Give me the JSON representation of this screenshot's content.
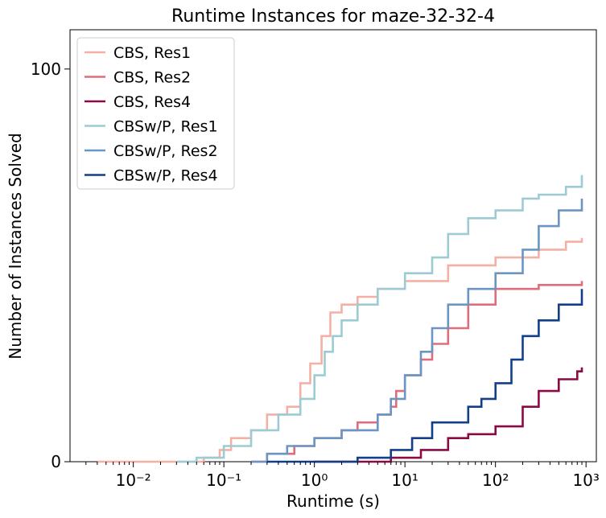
{
  "chart_data": {
    "type": "line",
    "title": "Runtime Instances for maze-32-32-4",
    "xlabel": "Runtime (s)",
    "ylabel": "Number of Instances Solved",
    "xscale": "log",
    "xlim": [
      0.002,
      1300
    ],
    "ylim": [
      0,
      110
    ],
    "xticks": [
      {
        "value": 0.01,
        "label": "10⁻²"
      },
      {
        "value": 0.1,
        "label": "10⁻¹"
      },
      {
        "value": 1,
        "label": "10⁰"
      },
      {
        "value": 10,
        "label": "10¹"
      },
      {
        "value": 100,
        "label": "10²"
      },
      {
        "value": 1000,
        "label": "10³"
      }
    ],
    "yticks": [
      {
        "value": 0,
        "label": "0"
      },
      {
        "value": 100,
        "label": "100"
      }
    ],
    "grid": false,
    "legend_position": "top-left",
    "series": [
      {
        "name": "CBS, Res1",
        "color": "#f4b0a5",
        "points": [
          [
            0.004,
            0
          ],
          [
            0.06,
            1
          ],
          [
            0.09,
            3
          ],
          [
            0.12,
            6
          ],
          [
            0.2,
            8
          ],
          [
            0.3,
            12
          ],
          [
            0.5,
            14
          ],
          [
            0.7,
            20
          ],
          [
            0.9,
            25
          ],
          [
            1.2,
            32
          ],
          [
            1.5,
            38
          ],
          [
            2.0,
            40
          ],
          [
            3.0,
            42
          ],
          [
            5.0,
            44
          ],
          [
            10,
            46
          ],
          [
            30,
            50
          ],
          [
            100,
            52
          ],
          [
            300,
            54
          ],
          [
            600,
            56
          ],
          [
            900,
            57
          ]
        ]
      },
      {
        "name": "CBS, Res2",
        "color": "#e06c7c",
        "points": [
          [
            0.2,
            0
          ],
          [
            0.3,
            2
          ],
          [
            0.6,
            4
          ],
          [
            1.0,
            6
          ],
          [
            2.0,
            8
          ],
          [
            3.0,
            10
          ],
          [
            5.0,
            12
          ],
          [
            7.0,
            14
          ],
          [
            8.0,
            18
          ],
          [
            10,
            22
          ],
          [
            15,
            26
          ],
          [
            20,
            30
          ],
          [
            30,
            34
          ],
          [
            50,
            40
          ],
          [
            100,
            44
          ],
          [
            300,
            45
          ],
          [
            900,
            46
          ]
        ]
      },
      {
        "name": "CBS, Res4",
        "color": "#8b0a44",
        "points": [
          [
            1.0,
            0
          ],
          [
            7,
            1
          ],
          [
            15,
            3
          ],
          [
            30,
            6
          ],
          [
            50,
            7
          ],
          [
            100,
            9
          ],
          [
            200,
            14
          ],
          [
            300,
            18
          ],
          [
            500,
            21
          ],
          [
            800,
            23
          ],
          [
            900,
            24
          ]
        ]
      },
      {
        "name": "CBSw/P, Res1",
        "color": "#9ccbd4",
        "points": [
          [
            0.03,
            0
          ],
          [
            0.05,
            1
          ],
          [
            0.1,
            4
          ],
          [
            0.2,
            8
          ],
          [
            0.4,
            12
          ],
          [
            0.7,
            16
          ],
          [
            1.0,
            22
          ],
          [
            1.3,
            28
          ],
          [
            1.6,
            32
          ],
          [
            2.0,
            36
          ],
          [
            3.0,
            40
          ],
          [
            5.0,
            44
          ],
          [
            10,
            48
          ],
          [
            20,
            52
          ],
          [
            30,
            58
          ],
          [
            50,
            62
          ],
          [
            100,
            64
          ],
          [
            200,
            67
          ],
          [
            300,
            68
          ],
          [
            600,
            70
          ],
          [
            900,
            73
          ]
        ]
      },
      {
        "name": "CBSw/P, Res2",
        "color": "#6a95c4",
        "points": [
          [
            0.2,
            0
          ],
          [
            0.3,
            2
          ],
          [
            0.5,
            4
          ],
          [
            1.0,
            6
          ],
          [
            2.0,
            8
          ],
          [
            5.0,
            12
          ],
          [
            7.0,
            16
          ],
          [
            10,
            22
          ],
          [
            15,
            28
          ],
          [
            20,
            34
          ],
          [
            30,
            40
          ],
          [
            50,
            44
          ],
          [
            100,
            48
          ],
          [
            200,
            54
          ],
          [
            300,
            60
          ],
          [
            500,
            64
          ],
          [
            900,
            67
          ]
        ]
      },
      {
        "name": "CBSw/P, Res4",
        "color": "#123f8a",
        "points": [
          [
            0.3,
            0
          ],
          [
            3,
            1
          ],
          [
            7,
            3
          ],
          [
            12,
            6
          ],
          [
            20,
            10
          ],
          [
            50,
            14
          ],
          [
            70,
            16
          ],
          [
            100,
            20
          ],
          [
            150,
            26
          ],
          [
            200,
            32
          ],
          [
            300,
            36
          ],
          [
            500,
            40
          ],
          [
            900,
            44
          ]
        ]
      }
    ]
  }
}
